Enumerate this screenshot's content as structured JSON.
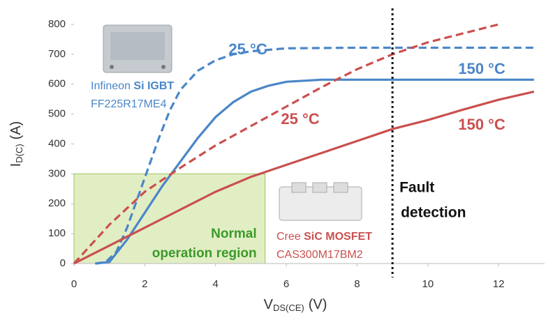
{
  "chart_data": {
    "type": "line",
    "xlabel": {
      "main": "V",
      "sub": "DS(CE)",
      "unit": "(V)"
    },
    "ylabel": {
      "main": "I",
      "sub": "D(C)",
      "unit": "(A)"
    },
    "xlim": [
      0,
      13.3
    ],
    "ylim": [
      0,
      800
    ],
    "xticks": [
      0,
      2,
      4,
      6,
      8,
      10,
      12
    ],
    "yticks": [
      0,
      100,
      200,
      300,
      400,
      500,
      600,
      700,
      800
    ],
    "grid": false,
    "series": [
      {
        "name": "25 °C",
        "color": "#4a86c8",
        "dashed": true,
        "x": [
          0.6,
          0.9,
          1.2,
          1.5,
          1.8,
          2.1,
          2.4,
          2.7,
          3.0,
          3.5,
          4.0,
          4.5,
          5.0,
          6.0,
          8.0,
          13.0
        ],
        "values": [
          0,
          5,
          40,
          120,
          220,
          320,
          420,
          510,
          580,
          645,
          680,
          700,
          710,
          720,
          722,
          722
        ]
      },
      {
        "name": "150 °C",
        "color": "#4a86c8",
        "dashed": false,
        "x": [
          0.6,
          1.0,
          1.5,
          2.0,
          2.5,
          3.0,
          3.5,
          4.0,
          4.5,
          5.0,
          5.5,
          6.0,
          7.0,
          8.0,
          13.0
        ],
        "values": [
          0,
          5,
          80,
          170,
          260,
          340,
          420,
          490,
          540,
          575,
          595,
          608,
          615,
          615,
          615
        ]
      },
      {
        "name": "25 °C",
        "color": "#c9504f",
        "dashed": true,
        "x": [
          0,
          1,
          2,
          3,
          4,
          5,
          6,
          7,
          8,
          9,
          10,
          11,
          12
        ],
        "values": [
          0,
          130,
          240,
          320,
          395,
          460,
          525,
          590,
          650,
          700,
          740,
          770,
          800
        ]
      },
      {
        "name": "150 °C",
        "color": "#c9504f",
        "dashed": false,
        "x": [
          0,
          1,
          2,
          3,
          4,
          5,
          6,
          7,
          8,
          9,
          10,
          11,
          12,
          13
        ],
        "values": [
          0,
          60,
          120,
          180,
          240,
          290,
          330,
          370,
          410,
          450,
          480,
          515,
          548,
          575
        ]
      }
    ],
    "normal_region": {
      "label": [
        "Normal",
        "operation region"
      ],
      "xlim": [
        0,
        5.4
      ],
      "ylim": [
        0,
        300
      ],
      "color": "#d7e8b0"
    },
    "fault_line": {
      "x": 9,
      "label": [
        "Fault",
        "detection"
      ]
    },
    "annotations": {
      "igbt": {
        "prefix": "Infineon ",
        "bold": "Si IGBT",
        "part": "FF225R17ME4",
        "color": "#4a86c8"
      },
      "mosfet": {
        "prefix": "Cree ",
        "bold": "SiC MOSFET",
        "part": "CAS300M17BM2",
        "color": "#c9504f"
      }
    }
  }
}
